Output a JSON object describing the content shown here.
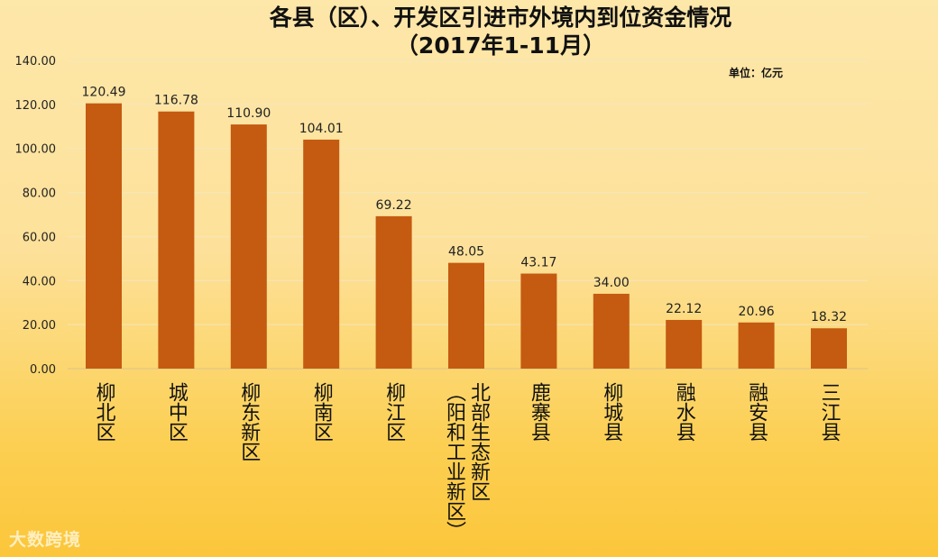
{
  "chart_data": {
    "type": "bar",
    "title": "各县（区）、开发区引进市外境内到位资金情况",
    "subtitle": "（2017年1-11月）",
    "unit": "单位：亿元",
    "categories": [
      "柳北区",
      "城中区",
      "柳东新区",
      "柳南区",
      "柳江区",
      "北部生态新区\n（阳和工业新区）",
      "鹿寨县",
      "柳城县",
      "融水县",
      "融安县",
      "三江县"
    ],
    "values": [
      120.49,
      116.78,
      110.9,
      104.01,
      69.22,
      48.05,
      43.17,
      34.0,
      22.12,
      20.96,
      18.32
    ],
    "data_labels": [
      "120.49",
      "116.78",
      "110.90",
      "104.01",
      "69.22",
      "48.05",
      "43.17",
      "34.00",
      "22.12",
      "20.96",
      "18.32"
    ],
    "yticks": [
      "0.00",
      "20.00",
      "40.00",
      "60.00",
      "80.00",
      "100.00",
      "120.00",
      "140.00"
    ],
    "ylim": [
      0,
      140
    ],
    "grid": true,
    "bar_color": "#c55a11"
  },
  "watermark": "大数跨境"
}
